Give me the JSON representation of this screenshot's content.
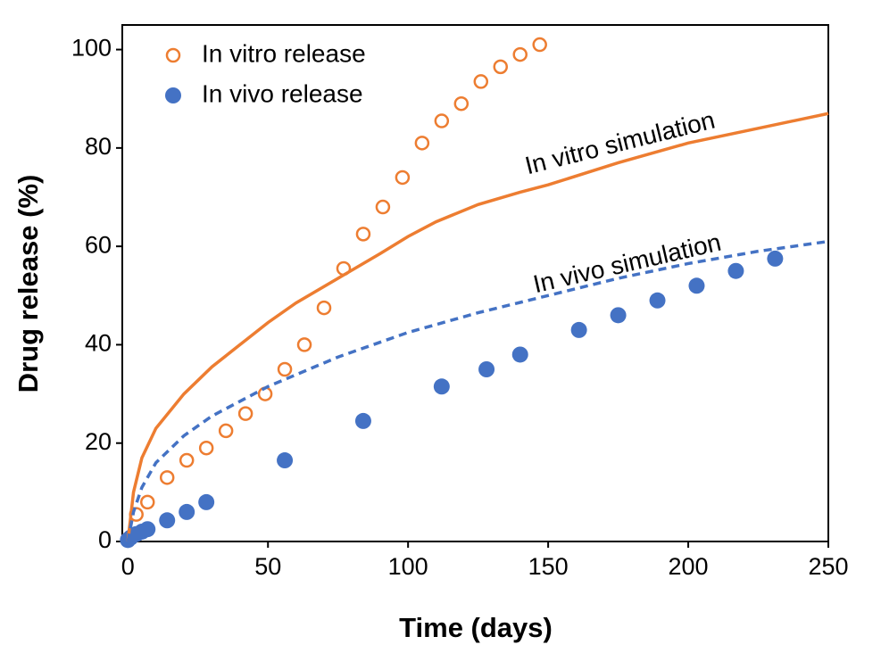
{
  "chart_data": {
    "type": "scatter",
    "xlabel": "Time (days)",
    "ylabel": "Drug release (%)",
    "xlim": [
      -2,
      250
    ],
    "ylim": [
      0,
      105
    ],
    "xticks": [
      0,
      50,
      100,
      150,
      200,
      250
    ],
    "yticks": [
      0,
      20,
      40,
      60,
      80,
      100
    ],
    "grid": false,
    "legend": "upper left",
    "series": [
      {
        "name": "In vitro release",
        "color": "#ED7D31",
        "style": "open-marker",
        "x": [
          0,
          3,
          7,
          14,
          21,
          28,
          35,
          42,
          49,
          56,
          63,
          70,
          77,
          84,
          91,
          98,
          105,
          112,
          119,
          126,
          133,
          140,
          147
        ],
        "values": [
          0.5,
          5.5,
          8,
          13,
          16.5,
          19,
          22.5,
          26,
          30,
          35,
          40,
          47.5,
          55.5,
          62.5,
          68,
          74,
          81,
          85.5,
          89,
          93.5,
          96.5,
          99,
          101
        ]
      },
      {
        "name": "In vivo release",
        "color": "#4472C4",
        "style": "filled-marker",
        "x": [
          0,
          1,
          3,
          5,
          7,
          14,
          21,
          28,
          56,
          84,
          112,
          128,
          140,
          161,
          175,
          189,
          203,
          217,
          231
        ],
        "values": [
          0.3,
          0.8,
          1.5,
          2,
          2.5,
          4.3,
          6,
          8,
          16.5,
          24.5,
          31.5,
          35,
          38,
          43,
          46,
          49,
          52,
          55,
          57.5
        ]
      },
      {
        "name": "In vitro simulation",
        "color": "#ED7D31",
        "style": "solid-line",
        "x": [
          0,
          2,
          5,
          10,
          20,
          30,
          40,
          50,
          60,
          75,
          90,
          100,
          110,
          125,
          140,
          150,
          175,
          200,
          225,
          250
        ],
        "values": [
          0,
          10,
          17,
          23,
          30,
          35.5,
          40,
          44.5,
          48.5,
          53.5,
          58.5,
          62,
          65,
          68.5,
          71,
          72.5,
          77,
          81,
          84,
          87
        ]
      },
      {
        "name": "In vivo simulation",
        "color": "#4472C4",
        "style": "dashed-line",
        "x": [
          0,
          2,
          5,
          10,
          20,
          30,
          50,
          75,
          100,
          125,
          150,
          175,
          200,
          225,
          250
        ],
        "values": [
          0,
          6,
          11,
          16,
          21.5,
          25.5,
          31.5,
          37.5,
          42.5,
          46.5,
          50,
          53.5,
          56.5,
          59,
          61
        ]
      }
    ]
  }
}
